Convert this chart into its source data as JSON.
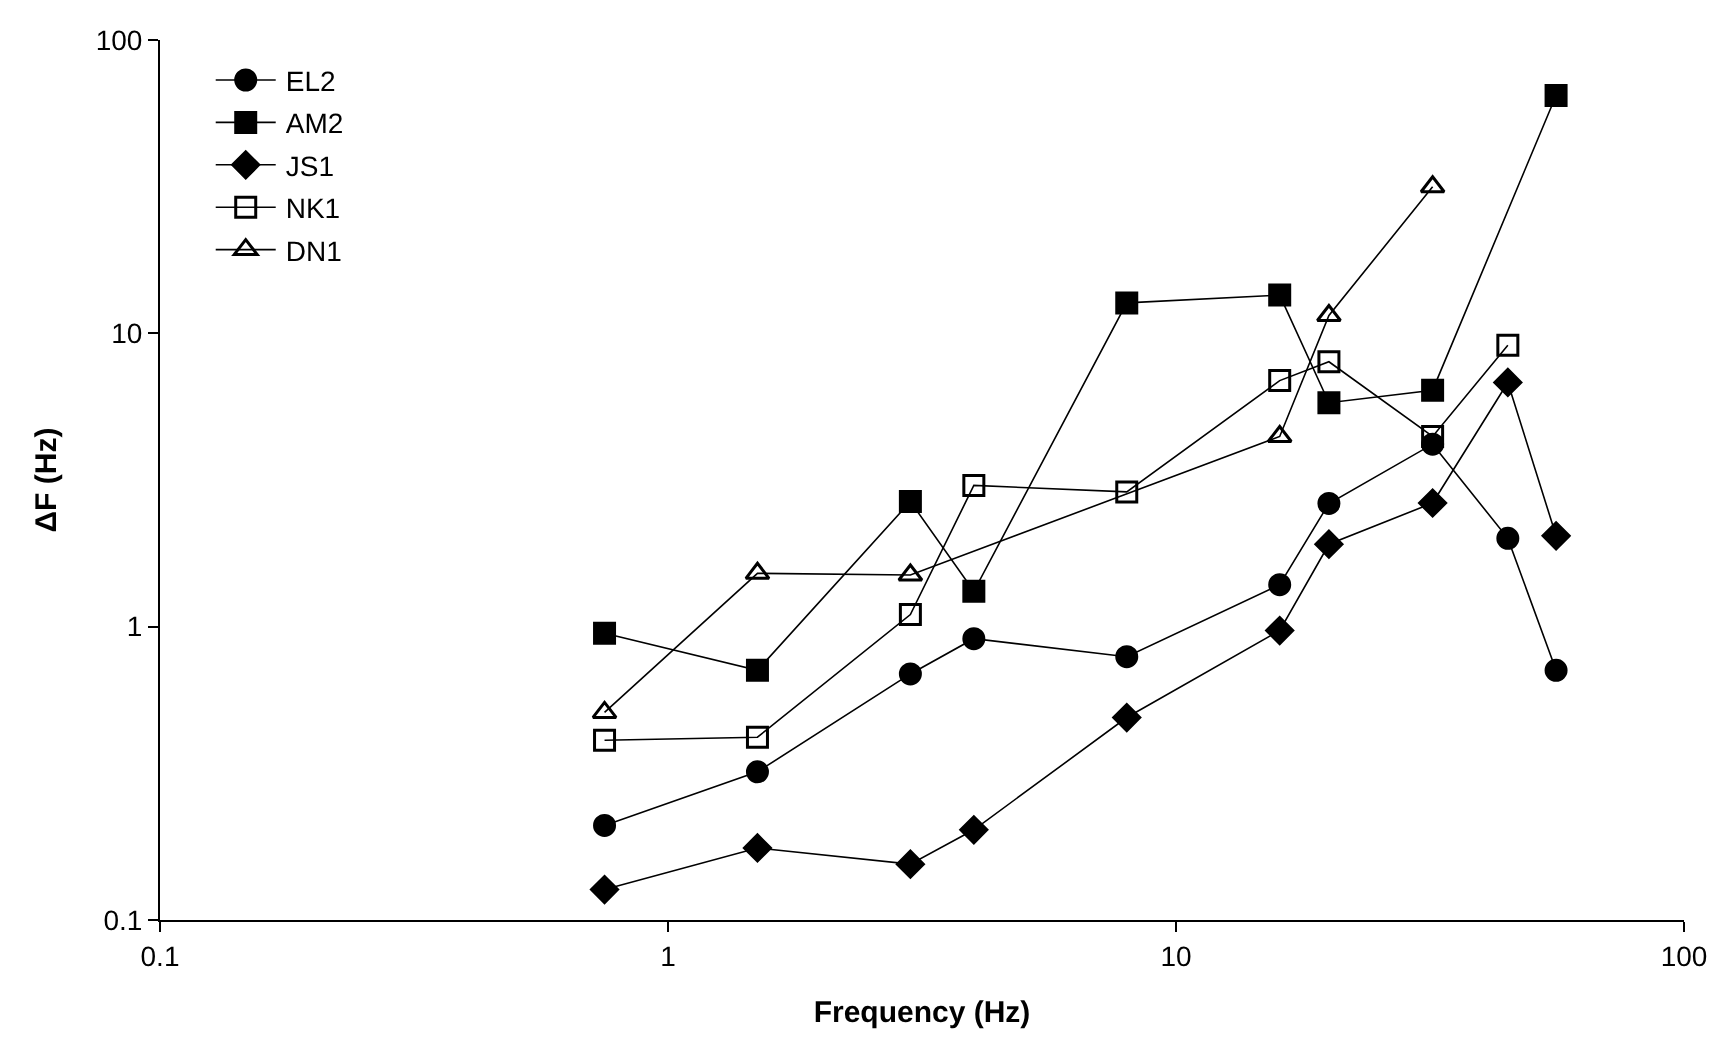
{
  "chart_data": {
    "type": "line",
    "xlabel": "Frequency (Hz)",
    "ylabel": "ΔF (Hz)",
    "log": "xy",
    "xlim": [
      0.1,
      100
    ],
    "xticks": [
      0.1,
      1,
      10,
      100
    ],
    "ylim": [
      0.1,
      100
    ],
    "yticks": [
      0.1,
      1,
      10,
      100
    ],
    "grid": false,
    "legend": "top left",
    "line_style": "solid",
    "series": [
      {
        "name": "EL2",
        "color": "#000000",
        "marker": "circle",
        "x": [
          0.75,
          1.5,
          3,
          4,
          8,
          16,
          20,
          32,
          45,
          56
        ],
        "values": [
          0.21,
          0.32,
          0.69,
          0.91,
          0.79,
          1.39,
          2.63,
          4.19,
          2.0,
          0.71
        ]
      },
      {
        "name": "AM2",
        "color": "#000000",
        "marker": "square",
        "x": [
          0.75,
          1.5,
          3,
          4,
          8,
          16,
          20,
          32,
          56
        ],
        "values": [
          0.95,
          0.71,
          2.67,
          1.32,
          12.7,
          13.5,
          5.8,
          6.4,
          64.7
        ]
      },
      {
        "name": "JS1",
        "color": "#000000",
        "marker": "diamond",
        "x": [
          0.75,
          1.5,
          3,
          4,
          8,
          16,
          20,
          32,
          45,
          56
        ],
        "values": [
          0.127,
          0.176,
          0.155,
          0.203,
          0.49,
          0.97,
          1.91,
          2.64,
          6.8,
          2.04
        ]
      },
      {
        "name": "NK1",
        "color": "#000000",
        "marker": "square-open",
        "x": [
          0.75,
          1.5,
          3,
          4,
          8,
          16,
          20,
          32,
          45
        ],
        "values": [
          0.41,
          0.42,
          1.1,
          3.03,
          2.88,
          6.9,
          8.0,
          4.45,
          9.1
        ]
      },
      {
        "name": "DN1",
        "color": "#000000",
        "marker": "triangle-open",
        "x": [
          0.75,
          1.5,
          3,
          16,
          20,
          32
        ],
        "values": [
          0.51,
          1.52,
          1.5,
          4.45,
          11.5,
          31.6
        ]
      }
    ]
  }
}
